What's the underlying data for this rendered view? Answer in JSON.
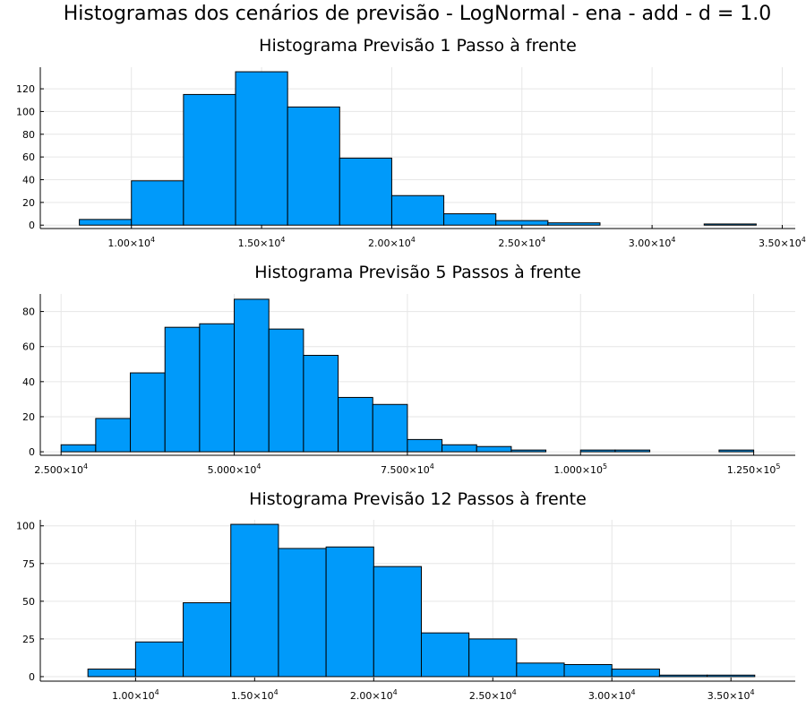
{
  "suptitle": "Histogramas dos cenários de previsão - LogNormal - ena - add - d = 1.0",
  "colors": {
    "bar": "#009AFA",
    "edge": "#000000",
    "grid": "#e6e6e6"
  },
  "chart_data": [
    {
      "type": "bar",
      "title": "Histograma Previsão 1 Passo à frente",
      "bin_edges": [
        8000,
        10000,
        12000,
        14000,
        16000,
        18000,
        20000,
        22000,
        24000,
        26000,
        28000,
        30000,
        32000,
        34000
      ],
      "values": [
        5,
        39,
        115,
        135,
        104,
        59,
        26,
        10,
        4,
        2,
        0,
        0,
        1
      ],
      "xlim": [
        6500,
        35500
      ],
      "ylim": [
        -3,
        139
      ],
      "xticks": [
        10000,
        15000,
        20000,
        25000,
        30000,
        35000
      ],
      "xtick_labels": [
        {
          "mant": "1.00×10",
          "exp": "4"
        },
        {
          "mant": "1.50×10",
          "exp": "4"
        },
        {
          "mant": "2.00×10",
          "exp": "4"
        },
        {
          "mant": "2.50×10",
          "exp": "4"
        },
        {
          "mant": "3.00×10",
          "exp": "4"
        },
        {
          "mant": "3.50×10",
          "exp": "4"
        }
      ],
      "yticks": [
        0,
        20,
        40,
        60,
        80,
        100,
        120
      ],
      "ytick_labels": [
        "0",
        "20",
        "40",
        "60",
        "80",
        "100",
        "120"
      ],
      "grid": true,
      "legend": "none"
    },
    {
      "type": "bar",
      "title": "Histograma Previsão 5 Passos à frente",
      "bin_edges": [
        25000,
        30000,
        35000,
        40000,
        45000,
        50000,
        55000,
        60000,
        65000,
        70000,
        75000,
        80000,
        85000,
        90000,
        95000,
        100000,
        105000,
        110000,
        115000,
        120000,
        125000
      ],
      "values": [
        4,
        19,
        45,
        71,
        73,
        87,
        70,
        55,
        31,
        27,
        7,
        4,
        3,
        1,
        0,
        1,
        1,
        0,
        0,
        1
      ],
      "xlim": [
        22000,
        131000
      ],
      "ylim": [
        -2,
        90
      ],
      "xticks": [
        25000,
        50000,
        75000,
        100000,
        125000
      ],
      "xtick_labels": [
        {
          "mant": "2.500×10",
          "exp": "4"
        },
        {
          "mant": "5.000×10",
          "exp": "4"
        },
        {
          "mant": "7.500×10",
          "exp": "4"
        },
        {
          "mant": "1.000×10",
          "exp": "5"
        },
        {
          "mant": "1.250×10",
          "exp": "5"
        }
      ],
      "yticks": [
        0,
        20,
        40,
        60,
        80
      ],
      "ytick_labels": [
        "0",
        "20",
        "40",
        "60",
        "80"
      ],
      "grid": true,
      "legend": "none"
    },
    {
      "type": "bar",
      "title": "Histograma Previsão 12 Passos à frente",
      "bin_edges": [
        8000,
        10000,
        12000,
        14000,
        16000,
        18000,
        20000,
        22000,
        24000,
        26000,
        28000,
        30000,
        32000,
        34000,
        36000
      ],
      "values": [
        5,
        23,
        49,
        101,
        85,
        86,
        73,
        29,
        25,
        9,
        8,
        5,
        1,
        1
      ],
      "xlim": [
        6000,
        37700
      ],
      "ylim": [
        -3,
        104
      ],
      "xticks": [
        10000,
        15000,
        20000,
        25000,
        30000,
        35000
      ],
      "xtick_labels": [
        {
          "mant": "1.00×10",
          "exp": "4"
        },
        {
          "mant": "1.50×10",
          "exp": "4"
        },
        {
          "mant": "2.00×10",
          "exp": "4"
        },
        {
          "mant": "2.50×10",
          "exp": "4"
        },
        {
          "mant": "3.00×10",
          "exp": "4"
        },
        {
          "mant": "3.50×10",
          "exp": "4"
        }
      ],
      "yticks": [
        0,
        25,
        50,
        75,
        100
      ],
      "ytick_labels": [
        "0",
        "25",
        "50",
        "75",
        "100"
      ],
      "grid": true,
      "legend": "none"
    }
  ]
}
